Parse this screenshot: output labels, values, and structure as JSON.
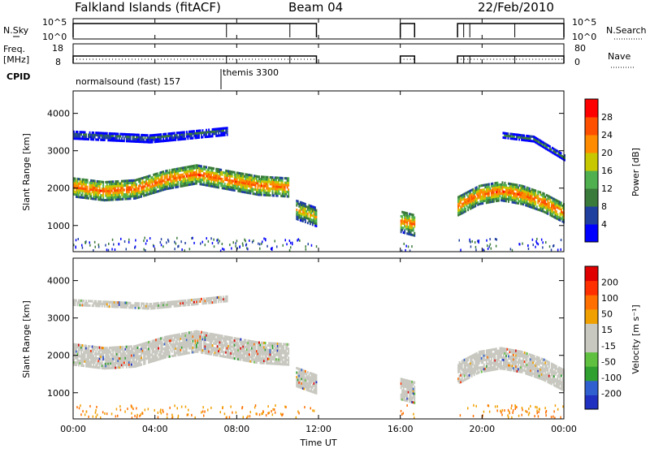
{
  "header": {
    "station": "Falkland Islands (fitACF)",
    "beam": "Beam 04",
    "date": "22/Feb/2010"
  },
  "panel_nsky": {
    "left_label": "N.Sky",
    "left_ticks": [
      "10^5",
      "10^0"
    ],
    "right_label": "N.Search",
    "right_ticks": [
      "10^5",
      "10^0"
    ]
  },
  "panel_freq": {
    "left_label_1": "Freq.",
    "left_label_2": "[MHz]",
    "left_ticks": [
      "18",
      "8"
    ],
    "right_label": "Nave",
    "right_ticks": [
      "80",
      "0"
    ]
  },
  "panel_cpid": {
    "label": "CPID",
    "entries": [
      "normalsound (fast) 157",
      "themis 3300"
    ]
  },
  "x_axis": {
    "label": "Time UT",
    "ticks": [
      "00:00",
      "04:00",
      "08:00",
      "12:00",
      "16:00",
      "20:00",
      "00:00"
    ]
  },
  "colors": {
    "power": [
      "#0000ff",
      "#2040a0",
      "#3a7a3a",
      "#50b050",
      "#c8c800",
      "#ff8c00",
      "#ff5000",
      "#ff0000"
    ],
    "velocity": [
      "#2030c0",
      "#3060d0",
      "#30a030",
      "#60c040",
      "#c8c8c0",
      "#c8c8c0",
      "#f0a000",
      "#ff7000",
      "#ff3000",
      "#e00000"
    ]
  },
  "chart_data": [
    {
      "type": "heatmap",
      "title": "Power",
      "xlabel": "Time UT",
      "ylabel": "Slant Range [km]",
      "xlim": [
        0,
        24
      ],
      "ylim": [
        300,
        4600
      ],
      "y_ticks": [
        "1000",
        "2000",
        "3000",
        "4000"
      ],
      "colorbar": {
        "label": "Power [dB]",
        "ticks": [
          "28",
          "24",
          "20",
          "16",
          "12",
          "8",
          "4"
        ]
      },
      "bands": [
        {
          "t0": 0.0,
          "t1": 10.5,
          "center": [
            2000,
            1900,
            1950,
            2200,
            2350,
            2200,
            2050,
            2000
          ],
          "width": 500,
          "level": 26
        },
        {
          "t0": 10.9,
          "t1": 11.9,
          "center": [
            1400,
            1200
          ],
          "width": 500,
          "level": 22
        },
        {
          "t0": 16.0,
          "t1": 16.7,
          "center": [
            1100,
            1000
          ],
          "width": 600,
          "level": 24
        },
        {
          "t0": 18.8,
          "t1": 24.0,
          "center": [
            1500,
            1800,
            1900,
            1800,
            1600,
            1300
          ],
          "width": 500,
          "level": 26
        },
        {
          "t0": 0.0,
          "t1": 7.5,
          "center": [
            3400,
            3300,
            3500
          ],
          "width": 200,
          "level": 12
        },
        {
          "t0": 21.0,
          "t1": 24.0,
          "center": [
            3400,
            3300,
            2800
          ],
          "width": 150,
          "level": 14
        }
      ]
    },
    {
      "type": "heatmap",
      "title": "Velocity",
      "xlabel": "Time UT",
      "ylabel": "Slant Range [km]",
      "xlim": [
        0,
        24
      ],
      "ylim": [
        300,
        4600
      ],
      "y_ticks": [
        "1000",
        "2000",
        "3000",
        "4000"
      ],
      "colorbar": {
        "label": "Velocity [m s⁻¹]",
        "ticks": [
          "200",
          "100",
          "50",
          "15",
          "-15",
          "-50",
          "-100",
          "-200"
        ]
      },
      "bands": [
        {
          "t0": 0.0,
          "t1": 10.5,
          "center": [
            2000,
            1900,
            1950,
            2200,
            2350,
            2200,
            2050,
            2000
          ],
          "width": 550,
          "level": 0
        },
        {
          "t0": 10.9,
          "t1": 11.9,
          "center": [
            1400,
            1200
          ],
          "width": 500,
          "level": 0
        },
        {
          "t0": 16.0,
          "t1": 16.7,
          "center": [
            1100,
            1000
          ],
          "width": 600,
          "level": 0
        },
        {
          "t0": 18.8,
          "t1": 24.0,
          "center": [
            1500,
            1800,
            1900,
            1800,
            1600,
            1300
          ],
          "width": 550,
          "level": 0
        },
        {
          "t0": 0.0,
          "t1": 7.5,
          "center": [
            3400,
            3300,
            3500
          ],
          "width": 150,
          "level": 0
        }
      ]
    }
  ]
}
